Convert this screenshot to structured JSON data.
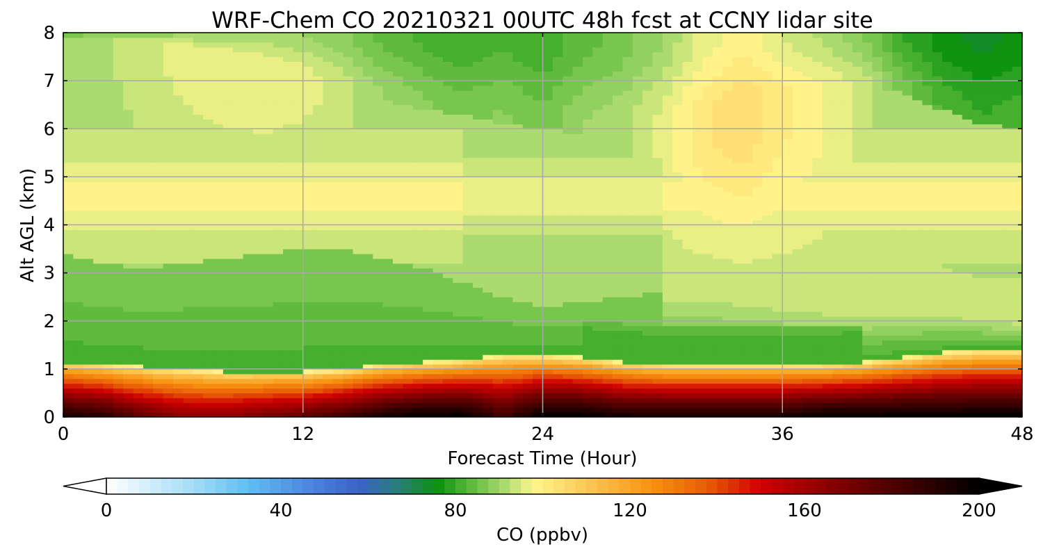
{
  "chart_data": {
    "type": "heatmap",
    "title": "WRF-Chem CO  20210321 00UTC 48h fcst at CCNY lidar site",
    "xlabel": "Forecast Time (Hour)",
    "ylabel": "Alt AGL (km)",
    "xlim": [
      0,
      48
    ],
    "ylim": [
      0,
      8
    ],
    "x_ticks": [
      0,
      12,
      24,
      36,
      48
    ],
    "y_ticks": [
      0,
      1,
      2,
      3,
      4,
      5,
      6,
      7,
      8
    ],
    "grid": true,
    "x": [
      0,
      2,
      4,
      6,
      8,
      10,
      12,
      14,
      16,
      18,
      20,
      22,
      24,
      26,
      28,
      30,
      32,
      34,
      36,
      38,
      40,
      42,
      44,
      46,
      48
    ],
    "y": [
      0,
      0.1,
      0.2,
      0.3,
      0.4,
      0.5,
      0.6,
      0.7,
      0.8,
      0.9,
      1.0,
      1.1,
      1.2,
      1.3,
      1.4,
      1.5,
      1.75,
      2,
      2.5,
      3,
      3.5,
      4,
      4.5,
      5,
      5.5,
      6,
      6.5,
      7,
      7.5,
      8
    ],
    "profile_top_km": [
      7.8,
      7.9,
      7.8,
      7.7,
      7.5,
      7.3,
      7.1,
      6.8,
      6.6,
      6.4,
      6.3,
      6.1,
      6.0,
      5.9,
      5.9,
      6.0,
      6.1,
      6.4,
      6.6,
      6.7,
      6.9,
      6.8,
      6.4,
      6.1,
      6.0
    ],
    "profile_mid_km": [
      3.4,
      3.2,
      3.1,
      3.2,
      3.3,
      3.4,
      3.5,
      3.5,
      3.3,
      3.1,
      2.8,
      2.5,
      2.3,
      2.4,
      2.5,
      2.6,
      2.6,
      2.5,
      2.4,
      2.3,
      2.2,
      2.2,
      2.2,
      2.1,
      2.0
    ],
    "pbl_top_km": [
      1.15,
      1.1,
      1.05,
      1.0,
      0.95,
      0.95,
      0.95,
      1.0,
      1.1,
      1.15,
      1.2,
      1.3,
      1.3,
      1.25,
      1.15,
      1.1,
      1.1,
      1.1,
      1.1,
      1.1,
      1.15,
      1.25,
      1.35,
      1.4,
      1.4
    ],
    "surface_co_ppbv": [
      195,
      190,
      175,
      165,
      165,
      170,
      175,
      185,
      195,
      200,
      200,
      185,
      200,
      200,
      195,
      195,
      195,
      195,
      195,
      200,
      200,
      200,
      200,
      200,
      200
    ],
    "upper_co_ppbv": [
      86,
      86,
      88,
      90,
      91,
      91,
      90,
      88,
      84,
      82,
      80,
      82,
      80,
      84,
      86,
      90,
      96,
      99,
      95,
      92,
      88,
      80,
      76,
      74,
      76
    ],
    "colorbar": {
      "label": "CO  (ppbv)",
      "vmin": 0,
      "vmax": 200,
      "step": 2.5,
      "ticks": [
        0,
        40,
        80,
        120,
        160,
        200
      ],
      "extend": "both",
      "color_stops": [
        {
          "v": 0,
          "color": "#ffffff"
        },
        {
          "v": 20,
          "color": "#a4dcf6"
        },
        {
          "v": 32,
          "color": "#61c0f2"
        },
        {
          "v": 48,
          "color": "#4a80dd"
        },
        {
          "v": 58,
          "color": "#3a62c5"
        },
        {
          "v": 66,
          "color": "#2a7c80"
        },
        {
          "v": 76,
          "color": "#0c9210"
        },
        {
          "v": 83,
          "color": "#59b838"
        },
        {
          "v": 91,
          "color": "#a8da6e"
        },
        {
          "v": 98,
          "color": "#fff58c"
        },
        {
          "v": 110,
          "color": "#fbc858"
        },
        {
          "v": 125,
          "color": "#f89210"
        },
        {
          "v": 138,
          "color": "#e85a06"
        },
        {
          "v": 150,
          "color": "#cf0000"
        },
        {
          "v": 172,
          "color": "#6e0000"
        },
        {
          "v": 200,
          "color": "#000000"
        }
      ]
    }
  }
}
